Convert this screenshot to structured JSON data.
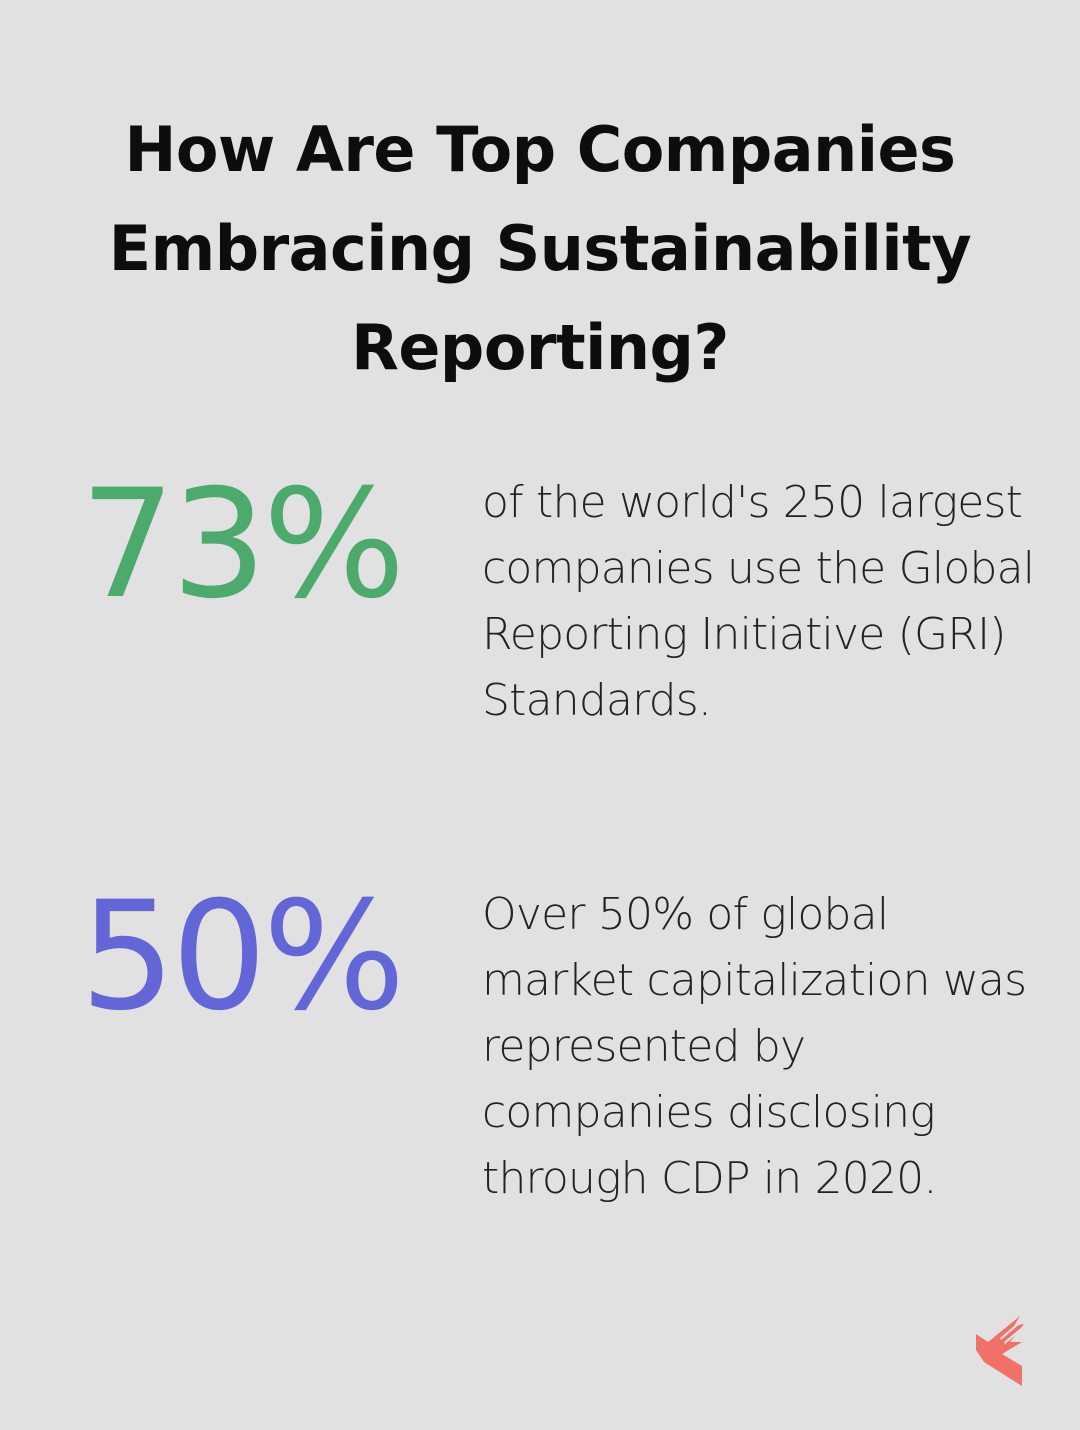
{
  "title": "How Are Top Companies Embracing Sustainability Reporting?",
  "stats": [
    {
      "value": "73%",
      "color": "#4daa6d",
      "description": "of the world's 250 largest companies use the Global Reporting Initiative (GRI) Standards."
    },
    {
      "value": "50%",
      "color": "#6266d6",
      "description": "Over 50% of global market capitalization was represented by companies disclosing through CDP in 2020."
    }
  ],
  "logo": {
    "icon": "arrow-logo-icon",
    "color": "#f0706a"
  }
}
